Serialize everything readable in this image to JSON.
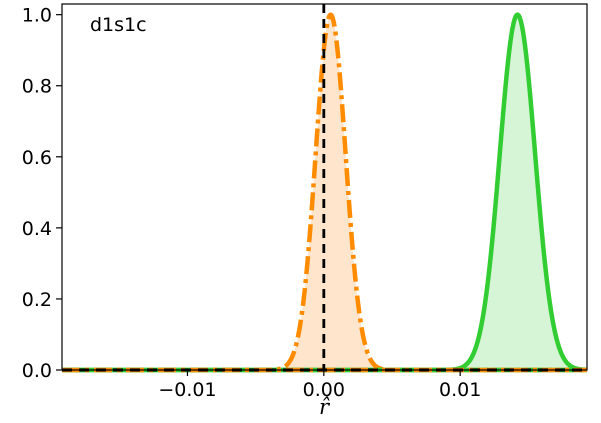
{
  "chart_data": {
    "type": "area",
    "annotation": "d1s1c",
    "xlabel": "r̂",
    "ylabel": "",
    "xlim": [
      -0.0192,
      0.0193
    ],
    "ylim": [
      0.0,
      1.03
    ],
    "x_ticks": [
      -0.01,
      0.0,
      0.01
    ],
    "x_tick_labels": [
      "−0.01",
      "0.00",
      "0.01"
    ],
    "y_ticks": [
      0.0,
      0.2,
      0.4,
      0.6,
      0.8,
      1.0
    ],
    "y_tick_labels": [
      "0.0",
      "0.2",
      "0.4",
      "0.6",
      "0.8",
      "1.0"
    ],
    "grid": false,
    "reference_line": {
      "x": 0.0,
      "style": "dashed",
      "color": "#000000"
    },
    "series": [
      {
        "shape": "gaussian",
        "mean": 0.0005,
        "sd": 0.0011,
        "peak": 1.0,
        "line_color": "#ff8c00",
        "fill_color": "#ffe5cc",
        "line_style": "dash-dot"
      },
      {
        "shape": "gaussian",
        "mean": 0.0142,
        "sd": 0.0013,
        "peak": 1.0,
        "line_color": "#32cd32",
        "fill_color": "#d6f5d6",
        "line_style": "solid"
      }
    ]
  }
}
